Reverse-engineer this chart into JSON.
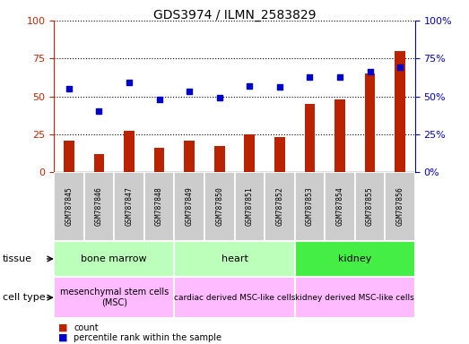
{
  "title": "GDS3974 / ILMN_2583829",
  "samples": [
    "GSM787845",
    "GSM787846",
    "GSM787847",
    "GSM787848",
    "GSM787849",
    "GSM787850",
    "GSM787851",
    "GSM787852",
    "GSM787853",
    "GSM787854",
    "GSM787855",
    "GSM787856"
  ],
  "count_values": [
    21,
    12,
    27,
    16,
    21,
    17,
    25,
    23,
    45,
    48,
    65,
    80
  ],
  "percentile_values": [
    55,
    40,
    59,
    48,
    53,
    49,
    57,
    56,
    63,
    63,
    66,
    69
  ],
  "ylim": [
    0,
    100
  ],
  "yticks": [
    0,
    25,
    50,
    75,
    100
  ],
  "bar_color": "#bb2200",
  "dot_color": "#0000cc",
  "bar_width": 0.35,
  "tissue_groups": [
    {
      "label": "bone marrow",
      "start": 0,
      "end": 4,
      "color": "#bbffbb"
    },
    {
      "label": "heart",
      "start": 4,
      "end": 8,
      "color": "#bbffbb"
    },
    {
      "label": "kidney",
      "start": 8,
      "end": 12,
      "color": "#44ee44"
    }
  ],
  "cell_type_groups": [
    {
      "label": "mesenchymal stem cells\n(MSC)",
      "start": 0,
      "end": 4,
      "color": "#ffbbff",
      "fontsize": 7
    },
    {
      "label": "cardiac derived MSC-like cells",
      "start": 4,
      "end": 8,
      "color": "#ffbbff",
      "fontsize": 6.5
    },
    {
      "label": "kidney derived MSC-like cells",
      "start": 8,
      "end": 12,
      "color": "#ffbbff",
      "fontsize": 6.5
    }
  ],
  "tissue_row_label": "tissue",
  "cell_type_row_label": "cell type",
  "legend_count_label": "count",
  "legend_pct_label": "percentile rank within the sample",
  "left_tick_color": "#cc2200",
  "right_tick_color": "#0000cc",
  "tick_label_bg": "#cccccc",
  "grid_color": "#000000",
  "title_fontsize": 10
}
